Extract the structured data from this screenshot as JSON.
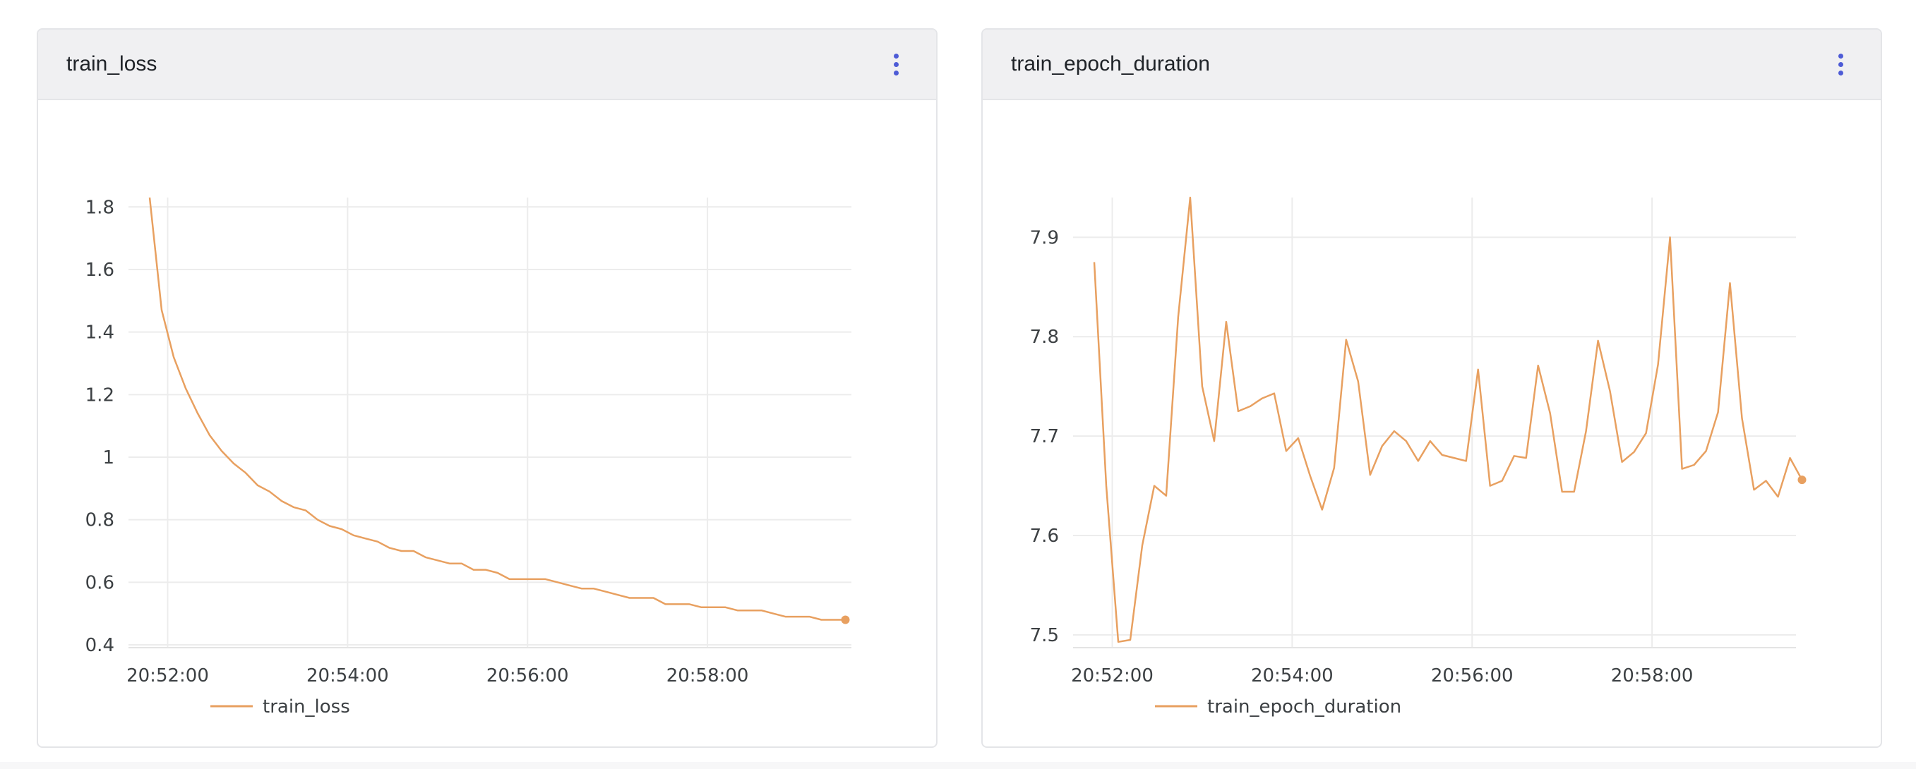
{
  "panels": [
    {
      "title": "train_loss",
      "chart_data": {
        "type": "line",
        "title": "train_loss",
        "xlabel": "",
        "ylabel": "",
        "x_tick_labels": [
          "20:52:00",
          "20:54:00",
          "20:56:00",
          "20:58:00"
        ],
        "y_tick_labels": [
          "0.4",
          "0.6",
          "0.8",
          "1",
          "1.2",
          "1.4",
          "1.6",
          "1.8"
        ],
        "x_ticks": [
          "20:52:00",
          "20:54:00",
          "20:56:00",
          "20:58:00"
        ],
        "y_ticks": [
          0.4,
          0.6,
          0.8,
          1.0,
          1.2,
          1.4,
          1.6,
          1.8
        ],
        "xlim": [
          "20:51:48",
          "20:59:36"
        ],
        "ylim": [
          0.4,
          1.83
        ],
        "grid": true,
        "legend_position": "bottom-left",
        "color": "#e8a060",
        "series": [
          {
            "name": "train_loss",
            "points": [
              [
                "20:51:48",
                1.83
              ],
              [
                "20:51:56",
                1.47
              ],
              [
                "20:52:04",
                1.32
              ],
              [
                "20:52:12",
                1.22
              ],
              [
                "20:52:20",
                1.14
              ],
              [
                "20:52:28",
                1.07
              ],
              [
                "20:52:36",
                1.02
              ],
              [
                "20:52:44",
                0.98
              ],
              [
                "20:52:52",
                0.95
              ],
              [
                "20:53:00",
                0.91
              ],
              [
                "20:53:08",
                0.89
              ],
              [
                "20:53:16",
                0.86
              ],
              [
                "20:53:24",
                0.84
              ],
              [
                "20:53:32",
                0.83
              ],
              [
                "20:53:40",
                0.8
              ],
              [
                "20:53:48",
                0.78
              ],
              [
                "20:53:56",
                0.77
              ],
              [
                "20:54:04",
                0.75
              ],
              [
                "20:54:12",
                0.74
              ],
              [
                "20:54:20",
                0.73
              ],
              [
                "20:54:28",
                0.71
              ],
              [
                "20:54:36",
                0.7
              ],
              [
                "20:54:44",
                0.7
              ],
              [
                "20:54:52",
                0.68
              ],
              [
                "20:55:00",
                0.67
              ],
              [
                "20:55:08",
                0.66
              ],
              [
                "20:55:16",
                0.66
              ],
              [
                "20:55:24",
                0.64
              ],
              [
                "20:55:32",
                0.64
              ],
              [
                "20:55:40",
                0.63
              ],
              [
                "20:55:48",
                0.61
              ],
              [
                "20:55:56",
                0.61
              ],
              [
                "20:56:04",
                0.61
              ],
              [
                "20:56:12",
                0.61
              ],
              [
                "20:56:20",
                0.6
              ],
              [
                "20:56:28",
                0.59
              ],
              [
                "20:56:36",
                0.58
              ],
              [
                "20:56:44",
                0.58
              ],
              [
                "20:56:52",
                0.57
              ],
              [
                "20:57:00",
                0.56
              ],
              [
                "20:57:08",
                0.55
              ],
              [
                "20:57:16",
                0.55
              ],
              [
                "20:57:24",
                0.55
              ],
              [
                "20:57:32",
                0.53
              ],
              [
                "20:57:40",
                0.53
              ],
              [
                "20:57:48",
                0.53
              ],
              [
                "20:57:56",
                0.52
              ],
              [
                "20:58:04",
                0.52
              ],
              [
                "20:58:12",
                0.52
              ],
              [
                "20:58:20",
                0.51
              ],
              [
                "20:58:28",
                0.51
              ],
              [
                "20:58:36",
                0.51
              ],
              [
                "20:58:44",
                0.5
              ],
              [
                "20:58:52",
                0.49
              ],
              [
                "20:59:00",
                0.49
              ],
              [
                "20:59:08",
                0.49
              ],
              [
                "20:59:16",
                0.48
              ],
              [
                "20:59:24",
                0.48
              ],
              [
                "20:59:32",
                0.48
              ]
            ]
          }
        ]
      }
    },
    {
      "title": "train_epoch_duration",
      "chart_data": {
        "type": "line",
        "title": "train_epoch_duration",
        "xlabel": "",
        "ylabel": "",
        "x_tick_labels": [
          "20:52:00",
          "20:54:00",
          "20:56:00",
          "20:58:00"
        ],
        "y_tick_labels": [
          "7.5",
          "7.6",
          "7.7",
          "7.8",
          "7.9"
        ],
        "x_ticks": [
          "20:52:00",
          "20:54:00",
          "20:56:00",
          "20:58:00"
        ],
        "y_ticks": [
          7.5,
          7.6,
          7.7,
          7.8,
          7.9
        ],
        "xlim": [
          "20:51:48",
          "20:59:36"
        ],
        "ylim": [
          7.49,
          7.94
        ],
        "grid": true,
        "legend_position": "bottom-left",
        "color": "#e8a060",
        "series": [
          {
            "name": "train_epoch_duration",
            "points": [
              [
                "20:51:48",
                7.875
              ],
              [
                "20:51:56",
                7.65
              ],
              [
                "20:52:04",
                7.493
              ],
              [
                "20:52:12",
                7.495
              ],
              [
                "20:52:20",
                7.59
              ],
              [
                "20:52:28",
                7.65
              ],
              [
                "20:52:36",
                7.64
              ],
              [
                "20:52:44",
                7.82
              ],
              [
                "20:52:52",
                7.94
              ],
              [
                "20:53:00",
                7.75
              ],
              [
                "20:53:08",
                7.695
              ],
              [
                "20:53:16",
                7.815
              ],
              [
                "20:53:24",
                7.725
              ],
              [
                "20:53:32",
                7.73
              ],
              [
                "20:53:40",
                7.738
              ],
              [
                "20:53:48",
                7.743
              ],
              [
                "20:53:56",
                7.685
              ],
              [
                "20:54:04",
                7.698
              ],
              [
                "20:54:12",
                7.66
              ],
              [
                "20:54:20",
                7.626
              ],
              [
                "20:54:28",
                7.668
              ],
              [
                "20:54:36",
                7.797
              ],
              [
                "20:54:44",
                7.755
              ],
              [
                "20:54:52",
                7.661
              ],
              [
                "20:55:00",
                7.69
              ],
              [
                "20:55:08",
                7.705
              ],
              [
                "20:55:16",
                7.695
              ],
              [
                "20:55:24",
                7.675
              ],
              [
                "20:55:32",
                7.695
              ],
              [
                "20:55:40",
                7.681
              ],
              [
                "20:55:48",
                7.678
              ],
              [
                "20:55:56",
                7.675
              ],
              [
                "20:56:04",
                7.767
              ],
              [
                "20:56:12",
                7.65
              ],
              [
                "20:56:20",
                7.655
              ],
              [
                "20:56:28",
                7.68
              ],
              [
                "20:56:36",
                7.678
              ],
              [
                "20:56:44",
                7.771
              ],
              [
                "20:56:52",
                7.723
              ],
              [
                "20:57:00",
                7.644
              ],
              [
                "20:57:08",
                7.644
              ],
              [
                "20:57:16",
                7.705
              ],
              [
                "20:57:24",
                7.796
              ],
              [
                "20:57:32",
                7.745
              ],
              [
                "20:57:40",
                7.674
              ],
              [
                "20:57:48",
                7.684
              ],
              [
                "20:57:56",
                7.703
              ],
              [
                "20:58:04",
                7.772
              ],
              [
                "20:58:12",
                7.9
              ],
              [
                "20:58:20",
                7.667
              ],
              [
                "20:58:28",
                7.671
              ],
              [
                "20:58:36",
                7.685
              ],
              [
                "20:58:44",
                7.724
              ],
              [
                "20:58:52",
                7.854
              ],
              [
                "20:59:00",
                7.718
              ],
              [
                "20:59:08",
                7.646
              ],
              [
                "20:59:16",
                7.655
              ],
              [
                "20:59:24",
                7.639
              ],
              [
                "20:59:32",
                7.678
              ],
              [
                "20:59:40",
                7.656
              ]
            ]
          }
        ]
      }
    }
  ]
}
